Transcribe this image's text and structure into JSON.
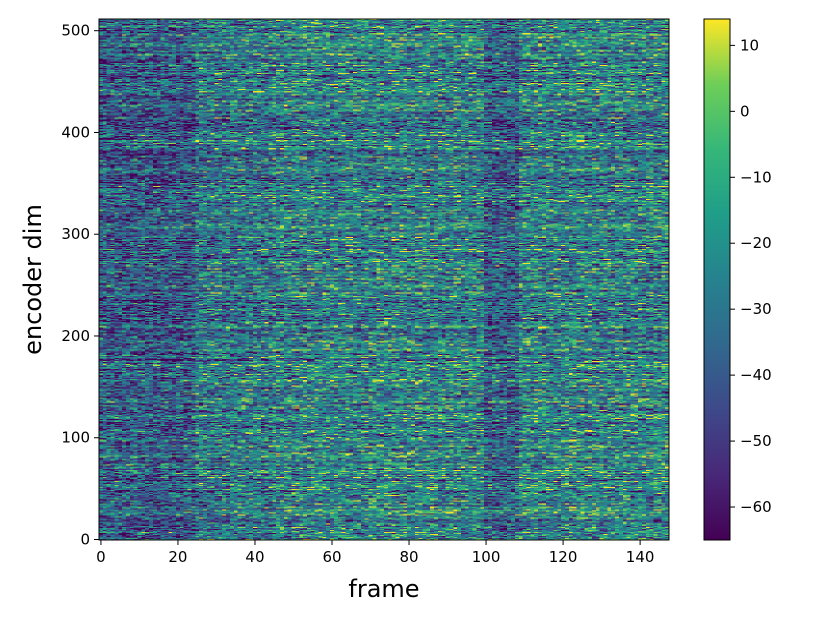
{
  "chart_data": {
    "type": "heatmap",
    "title": "",
    "xlabel": "frame",
    "ylabel": "encoder dim",
    "x_range": [
      0,
      147
    ],
    "y_range": [
      0,
      511
    ],
    "xticks": [
      0,
      20,
      40,
      60,
      80,
      100,
      120,
      140
    ],
    "yticks": [
      0,
      100,
      200,
      300,
      400,
      500
    ],
    "colormap": "viridis",
    "colorbar": {
      "range": [
        -65,
        14
      ],
      "ticks": [
        10,
        0,
        -10,
        -20,
        -30,
        -40,
        -50,
        -60
      ],
      "tick_labels": [
        "10",
        "0",
        "−10",
        "−20",
        "−30",
        "−40",
        "−50",
        "−60"
      ]
    },
    "description_note_free": true
  }
}
